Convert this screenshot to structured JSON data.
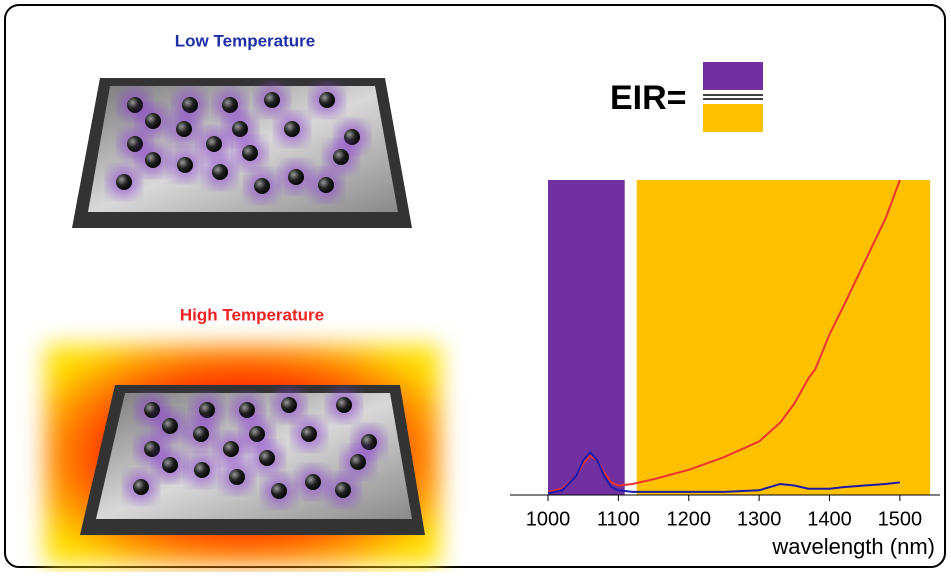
{
  "labels": {
    "low": "Low Temperature",
    "high": "High Temperature",
    "eir": "EIR="
  },
  "chart_data": {
    "type": "line",
    "xlabel": "wavelength (nm)",
    "xlim": [
      946,
      1557
    ],
    "ylim": [
      0,
      100
    ],
    "xticks": [
      1000,
      1100,
      1200,
      1300,
      1400,
      1500
    ],
    "bands": [
      {
        "xmin": 1000,
        "xmax": 1109,
        "color": "#7030a0"
      },
      {
        "xmin": 1126,
        "xmax": 1543,
        "color": "#ffc000"
      }
    ],
    "x": [
      1000,
      1020,
      1040,
      1050,
      1060,
      1070,
      1080,
      1090,
      1100,
      1120,
      1150,
      1200,
      1250,
      1300,
      1330,
      1350,
      1370,
      1380,
      1400,
      1420,
      1450,
      1480,
      1500
    ],
    "series": [
      {
        "color": "#ee3333",
        "values": [
          1,
          2,
          6,
          10,
          12.5,
          11,
          7,
          4,
          3,
          3.5,
          5,
          8,
          12,
          17,
          23,
          29,
          37,
          40,
          51,
          60,
          74,
          88,
          100
        ]
      },
      {
        "color": "#1a1aa8",
        "values": [
          0.6,
          1.5,
          6,
          11,
          13.5,
          11,
          6,
          2.5,
          1.5,
          1,
          1,
          1,
          1,
          1.5,
          3.5,
          3,
          2,
          2,
          2,
          2.5,
          3,
          3.5,
          4
        ]
      }
    ]
  }
}
